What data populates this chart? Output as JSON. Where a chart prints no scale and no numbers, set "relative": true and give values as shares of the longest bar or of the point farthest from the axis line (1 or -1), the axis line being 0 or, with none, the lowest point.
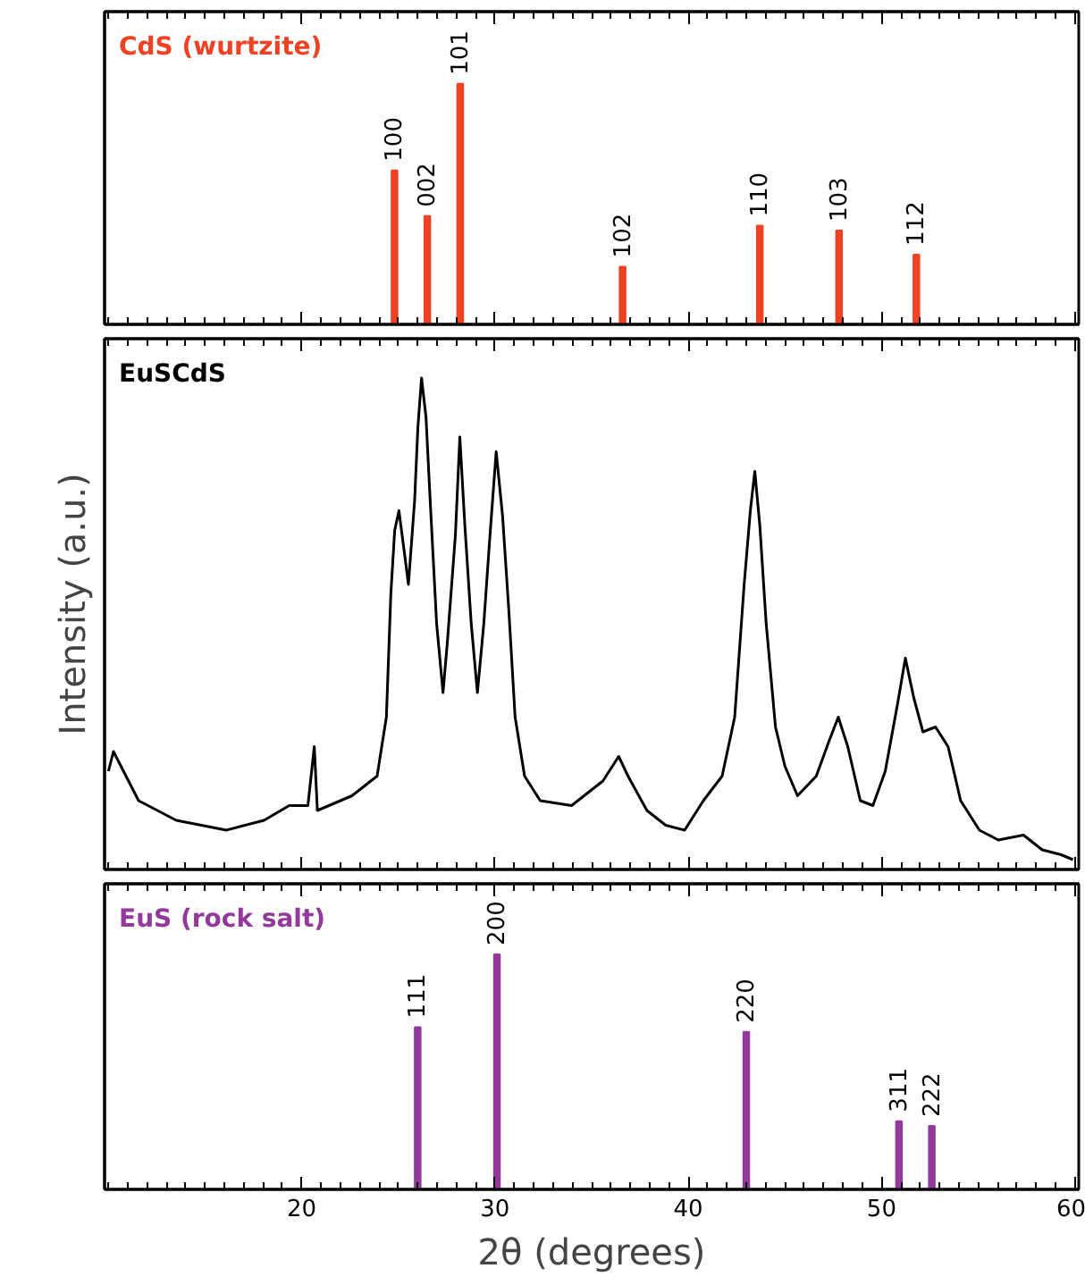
{
  "chart_data": [
    {
      "type": "bar",
      "title": "CdS (wurtzite)",
      "relative": true,
      "tick_labels": false,
      "xlim": [
        9.8,
        60.2
      ],
      "xticks": [
        20,
        30,
        40,
        50,
        60
      ],
      "series": [
        {
          "color": "#ef4123",
          "x": [
            24.8,
            26.5,
            28.2,
            36.6,
            43.7,
            47.8,
            51.8
          ],
          "values": [
            0.64,
            0.45,
            1.0,
            0.24,
            0.41,
            0.39,
            0.29
          ]
        }
      ],
      "annotations": [
        {
          "text": "100",
          "x": 24.8,
          "y": 0.64
        },
        {
          "text": "002",
          "x": 26.5,
          "y": 0.45
        },
        {
          "text": "101",
          "x": 28.2,
          "y": 1.0
        },
        {
          "text": "102",
          "x": 36.6,
          "y": 0.24
        },
        {
          "text": "110",
          "x": 43.7,
          "y": 0.41
        },
        {
          "text": "103",
          "x": 47.8,
          "y": 0.39
        },
        {
          "text": "112",
          "x": 51.8,
          "y": 0.29
        }
      ]
    },
    {
      "type": "line",
      "title": "EuSCdS",
      "ylabel": "Intensity (a.u.)",
      "relative": true,
      "tick_labels": false,
      "xlim": [
        9.8,
        60.2
      ],
      "xticks": [
        20,
        30,
        40,
        50,
        60
      ],
      "series": [
        {
          "color": "#000000",
          "x": [
            10.0,
            10.26,
            11.56,
            13.51,
            16.1,
            18.05,
            19.35,
            20.32,
            20.65,
            20.81,
            22.6,
            23.9,
            24.38,
            24.61,
            24.81,
            25.03,
            25.36,
            25.52,
            25.84,
            26.01,
            26.2,
            26.43,
            26.66,
            26.98,
            27.31,
            27.53,
            27.95,
            28.18,
            28.44,
            28.77,
            29.09,
            29.42,
            29.74,
            30.06,
            30.39,
            30.71,
            31.04,
            31.53,
            32.34,
            33.96,
            35.58,
            36.4,
            36.88,
            37.86,
            38.83,
            39.81,
            40.78,
            41.75,
            42.4,
            42.89,
            43.21,
            43.44,
            43.7,
            44.03,
            44.51,
            45.0,
            45.65,
            46.62,
            47.27,
            47.76,
            48.25,
            48.9,
            49.55,
            50.19,
            50.84,
            51.23,
            51.66,
            52.14,
            52.79,
            53.44,
            54.09,
            55.06,
            56.04,
            57.34,
            58.31,
            59.29,
            59.9
          ],
          "values": [
            0.2,
            0.24,
            0.14,
            0.1,
            0.08,
            0.1,
            0.13,
            0.13,
            0.25,
            0.12,
            0.15,
            0.19,
            0.31,
            0.56,
            0.69,
            0.73,
            0.63,
            0.58,
            0.75,
            0.9,
            1.0,
            0.92,
            0.74,
            0.5,
            0.36,
            0.46,
            0.68,
            0.88,
            0.7,
            0.5,
            0.36,
            0.5,
            0.68,
            0.85,
            0.72,
            0.53,
            0.31,
            0.19,
            0.14,
            0.13,
            0.18,
            0.23,
            0.19,
            0.12,
            0.09,
            0.08,
            0.14,
            0.19,
            0.31,
            0.58,
            0.73,
            0.81,
            0.7,
            0.5,
            0.29,
            0.21,
            0.15,
            0.19,
            0.26,
            0.31,
            0.25,
            0.14,
            0.13,
            0.2,
            0.34,
            0.43,
            0.35,
            0.28,
            0.29,
            0.25,
            0.14,
            0.08,
            0.06,
            0.07,
            0.04,
            0.03,
            0.02
          ]
        }
      ]
    },
    {
      "type": "bar",
      "title": "EuS (rock salt)",
      "xlabel": "2θ (degrees)",
      "relative": true,
      "tick_labels": "x",
      "xlim": [
        9.8,
        60.2
      ],
      "xticks": [
        20,
        30,
        40,
        50,
        60
      ],
      "series": [
        {
          "color": "#93399b",
          "x": [
            26.0,
            30.1,
            43.0,
            50.9,
            52.6
          ],
          "values": [
            0.69,
            1.0,
            0.67,
            0.29,
            0.27
          ]
        }
      ],
      "annotations": [
        {
          "text": "111",
          "x": 26.0,
          "y": 0.69
        },
        {
          "text": "200",
          "x": 30.1,
          "y": 1.0
        },
        {
          "text": "220",
          "x": 43.0,
          "y": 0.67
        },
        {
          "text": "311",
          "x": 50.9,
          "y": 0.29
        },
        {
          "text": "222",
          "x": 52.6,
          "y": 0.27
        }
      ]
    }
  ]
}
